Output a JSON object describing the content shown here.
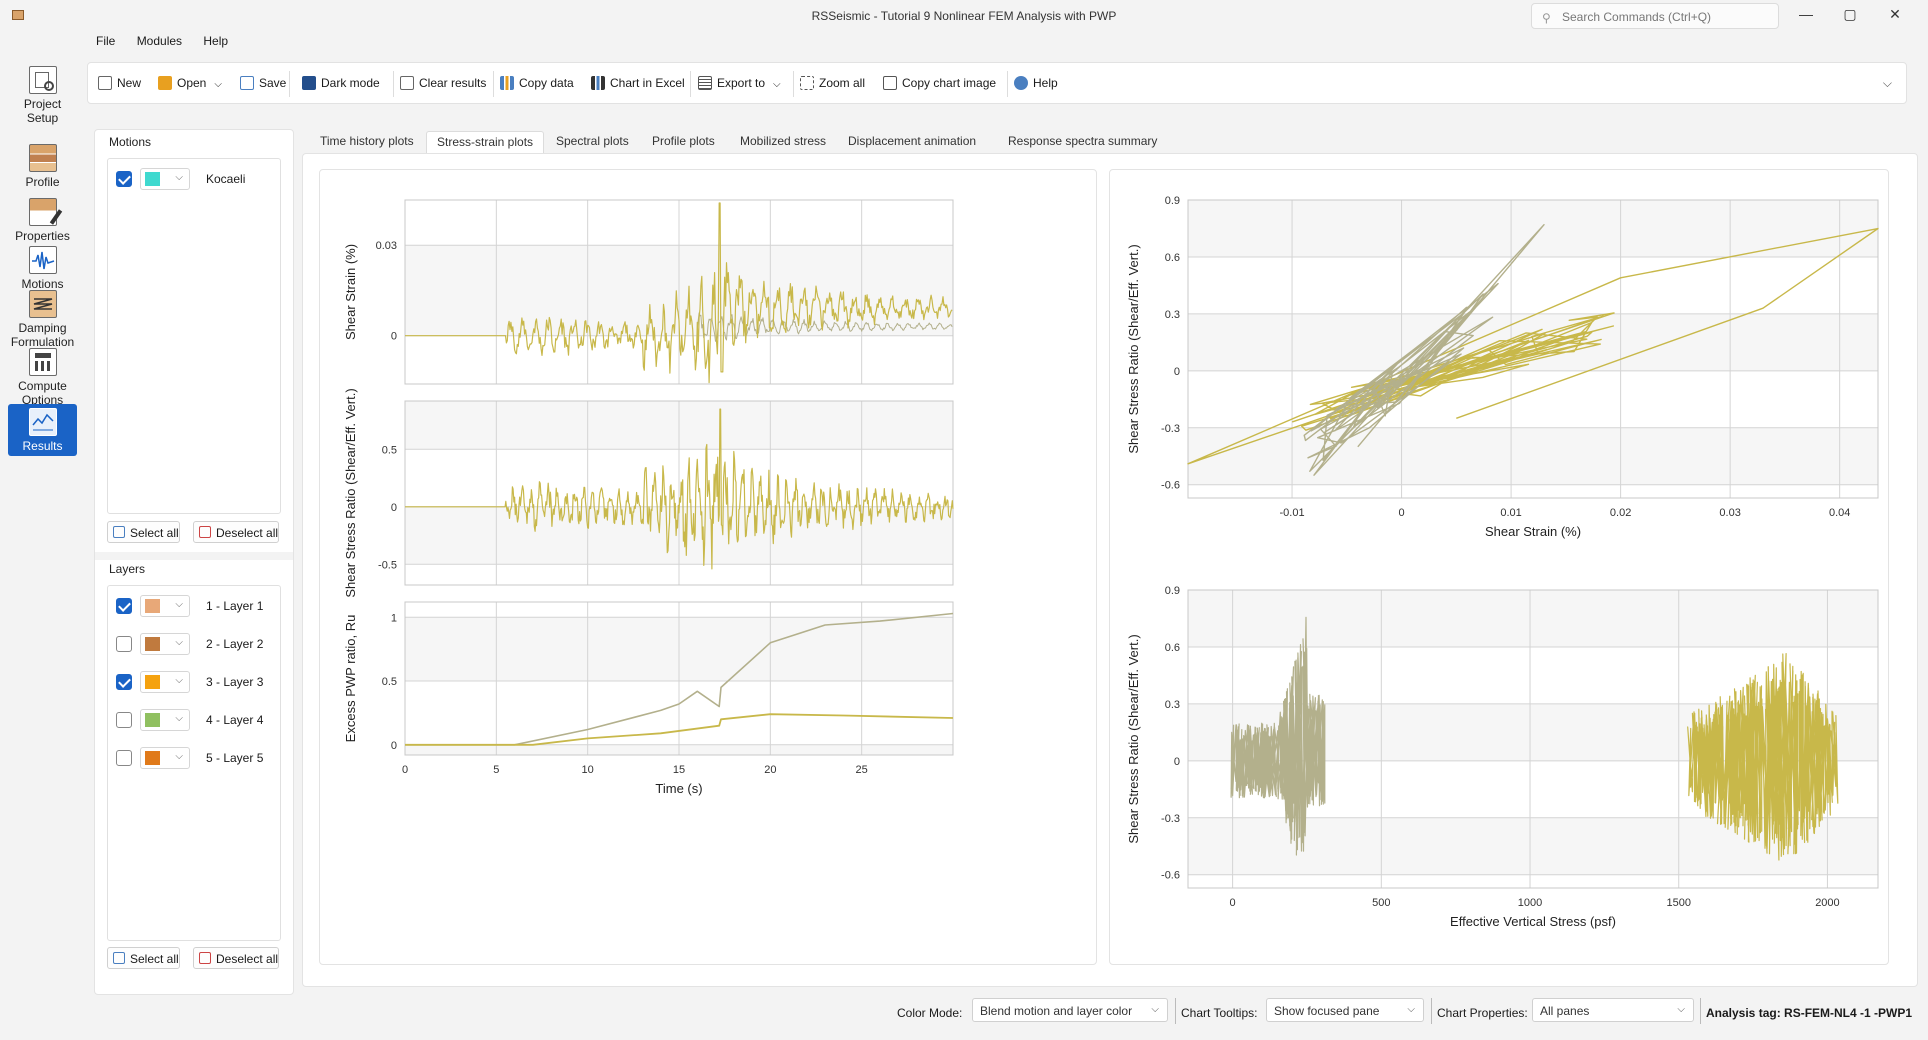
{
  "window": {
    "title": "RSSeismic - Tutorial 9 Nonlinear FEM Analysis with PWP",
    "search_placeholder": "Search Commands (Ctrl+Q)",
    "minimize": "—",
    "maximize": "▢",
    "close": "✕"
  },
  "nav": [
    {
      "label1": "Project",
      "label2": "Setup",
      "icon": "project-setup-icon"
    },
    {
      "label1": "Profile",
      "label2": "",
      "icon": "profile-icon"
    },
    {
      "label1": "Properties",
      "label2": "",
      "icon": "properties-icon"
    },
    {
      "label1": "Motions",
      "label2": "",
      "icon": "motions-icon"
    },
    {
      "label1": "Damping",
      "label2": "Formulation",
      "icon": "damping-icon"
    },
    {
      "label1": "Compute",
      "label2": "Options",
      "icon": "compute-icon"
    },
    {
      "label1": "Results",
      "label2": "",
      "icon": "results-icon",
      "active": true
    }
  ],
  "menu": [
    "File",
    "Modules",
    "Help"
  ],
  "toolbar": {
    "new": "New",
    "open": "Open",
    "save": "Save",
    "dark_mode": "Dark mode",
    "clear_results": "Clear results",
    "copy_data": "Copy data",
    "chart_in_excel": "Chart in Excel",
    "export_to": "Export to",
    "zoom_all": "Zoom all",
    "copy_chart_image": "Copy chart image",
    "help": "Help"
  },
  "motions": {
    "title": "Motions",
    "items": [
      {
        "label": "Kocaeli",
        "checked": true,
        "color": "#3fd9cf"
      }
    ],
    "select_all": "Select all",
    "deselect_all": "Deselect all"
  },
  "layers": {
    "title": "Layers",
    "items": [
      {
        "label": "1 - Layer 1",
        "checked": true,
        "color": "#e8a878"
      },
      {
        "label": "2 - Layer 2",
        "checked": false,
        "color": "#c07a3e"
      },
      {
        "label": "3 - Layer 3",
        "checked": true,
        "color": "#f5a20f"
      },
      {
        "label": "4 - Layer 4",
        "checked": false,
        "color": "#90c060"
      },
      {
        "label": "5 - Layer 5",
        "checked": false,
        "color": "#e07a1a"
      }
    ],
    "select_all": "Select all",
    "deselect_all": "Deselect all"
  },
  "tabs": [
    "Time history plots",
    "Stress-strain plots",
    "Spectral plots",
    "Profile plots",
    "Mobilized stress",
    "Displacement animation",
    "Response spectra summary"
  ],
  "active_tab": "Stress-strain plots",
  "chart_data": [
    {
      "type": "line",
      "ylabel": "Shear Strain (%)",
      "y_ticks": [
        "0.03",
        "0"
      ],
      "xlim": [
        0,
        30
      ],
      "ylim": [
        -0.016,
        0.045
      ],
      "series": [
        {
          "color": "#c8b84a"
        },
        {
          "color": "#b3b08c"
        }
      ]
    },
    {
      "type": "line",
      "ylabel": "Shear Stress Ratio (Shear/Eff. Vert.)",
      "y_ticks": [
        "0.5",
        "0",
        "-0.5"
      ],
      "xlim": [
        0,
        30
      ],
      "ylim": [
        -0.68,
        0.92
      ],
      "series": [
        {
          "color": "#c8b84a"
        }
      ]
    },
    {
      "type": "line",
      "ylabel": "Excess PWP ratio, Ru",
      "xlabel": "Time (s)",
      "y_ticks": [
        "1",
        "0.5",
        "0"
      ],
      "x_ticks": [
        "0",
        "5",
        "10",
        "15",
        "20",
        "25"
      ],
      "xlim": [
        0,
        30
      ],
      "ylim": [
        -0.08,
        1.12
      ],
      "series": [
        {
          "color": "#b3b08c",
          "x": [
            0,
            6,
            10,
            14,
            15,
            16,
            17.2,
            17.3,
            20,
            23,
            26,
            30
          ],
          "y": [
            0,
            0,
            0.12,
            0.27,
            0.32,
            0.42,
            0.3,
            0.45,
            0.8,
            0.94,
            0.97,
            1.03
          ]
        },
        {
          "color": "#c8b84a",
          "x": [
            0,
            7,
            10,
            14,
            17.2,
            17.3,
            20,
            24,
            30
          ],
          "y": [
            0,
            0,
            0.05,
            0.09,
            0.15,
            0.2,
            0.24,
            0.23,
            0.21
          ]
        }
      ]
    },
    {
      "type": "line",
      "ylabel": "Shear Stress Ratio (Shear/Eff. Vert.)",
      "xlabel": "Shear Strain (%)",
      "x_ticks": [
        "-0.01",
        "0",
        "0.01",
        "0.02",
        "0.03",
        "0.04"
      ],
      "y_ticks": [
        "0.9",
        "0.6",
        "0.3",
        "0",
        "-0.3",
        "-0.6"
      ],
      "xlim": [
        -0.0195,
        0.0435
      ],
      "ylim": [
        -0.67,
        0.9
      ],
      "series": [
        {
          "color": "#c8b84a"
        },
        {
          "color": "#b3b08c"
        }
      ]
    },
    {
      "type": "line",
      "ylabel": "Shear Stress Ratio (Shear/Eff. Vert.)",
      "xlabel": "Effective Vertical Stress (psf)",
      "x_ticks": [
        "0",
        "500",
        "1000",
        "1500",
        "2000"
      ],
      "y_ticks": [
        "0.9",
        "0.6",
        "0.3",
        "0",
        "-0.3",
        "-0.6"
      ],
      "xlim": [
        -150,
        2170
      ],
      "ylim": [
        -0.67,
        0.9
      ],
      "series": [
        {
          "color": "#b3b08c"
        },
        {
          "color": "#c8b84a"
        }
      ]
    }
  ],
  "status": {
    "color_mode_label": "Color Mode:",
    "color_mode_value": "Blend motion and layer color",
    "tooltips_label": "Chart Tooltips:",
    "tooltips_value": "Show focused pane",
    "props_label": "Chart Properties:",
    "props_value": "All panes",
    "analysis_tag": "Analysis tag: RS-FEM-NL4 -1 -PWP1"
  }
}
